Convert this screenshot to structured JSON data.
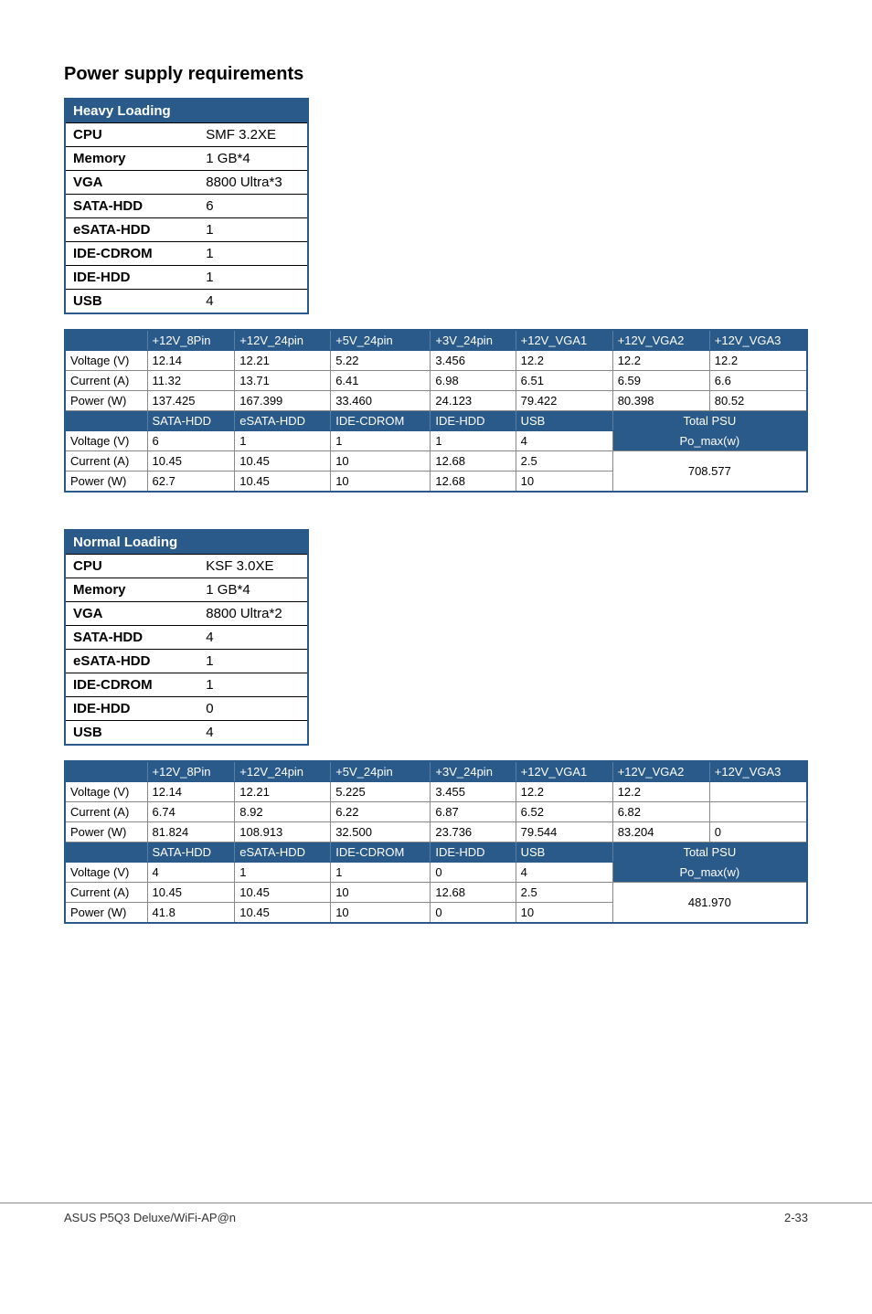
{
  "title": "Power supply requirements",
  "heavy": {
    "header": "Heavy Loading",
    "rows": [
      {
        "k": "CPU",
        "v": "SMF 3.2XE"
      },
      {
        "k": "Memory",
        "v": "1 GB*4"
      },
      {
        "k": "VGA",
        "v": "8800 Ultra*3"
      },
      {
        "k": "SATA-HDD",
        "v": "6"
      },
      {
        "k": "eSATA-HDD",
        "v": "1"
      },
      {
        "k": "IDE-CDROM",
        "v": "1"
      },
      {
        "k": "IDE-HDD",
        "v": "1"
      },
      {
        "k": "USB",
        "v": "4"
      }
    ],
    "grid": {
      "h1": [
        "",
        "+12V_8Pin",
        "+12V_24pin",
        "+5V_24pin",
        "+3V_24pin",
        "+12V_VGA1",
        "+12V_VGA2",
        "+12V_VGA3"
      ],
      "r1": [
        {
          "l": "Voltage (V)",
          "c": [
            "12.14",
            "12.21",
            "5.22",
            "3.456",
            "12.2",
            "12.2",
            "12.2"
          ]
        },
        {
          "l": "Current (A)",
          "c": [
            "11.32",
            "13.71",
            "6.41",
            "6.98",
            "6.51",
            "6.59",
            "6.6"
          ]
        },
        {
          "l": "Power (W)",
          "c": [
            "137.425",
            "167.399",
            "33.460",
            "24.123",
            "79.422",
            "80.398",
            "80.52"
          ]
        }
      ],
      "h2": [
        "",
        "SATA-HDD",
        "eSATA-HDD",
        "IDE-CDROM",
        "IDE-HDD",
        "USB",
        "Total PSU"
      ],
      "r2": [
        {
          "l": "Voltage (V)",
          "c": [
            "6",
            "1",
            "1",
            "1",
            "4"
          ],
          "tail": "Po_max(w)"
        },
        {
          "l": "Current (A)",
          "c": [
            "10.45",
            "10.45",
            "10",
            "12.68",
            "2.5"
          ],
          "tail": "708.577"
        },
        {
          "l": "Power (W)",
          "c": [
            "62.7",
            "10.45",
            "10",
            "12.68",
            "10"
          ]
        }
      ],
      "total_value": "708.577",
      "po_label": "Po_max(w)"
    }
  },
  "normal": {
    "header": "Normal Loading",
    "rows": [
      {
        "k": "CPU",
        "v": "KSF 3.0XE"
      },
      {
        "k": "Memory",
        "v": "1 GB*4"
      },
      {
        "k": "VGA",
        "v": "8800 Ultra*2"
      },
      {
        "k": "SATA-HDD",
        "v": "4"
      },
      {
        "k": "eSATA-HDD",
        "v": "1"
      },
      {
        "k": "IDE-CDROM",
        "v": "1"
      },
      {
        "k": "IDE-HDD",
        "v": "0"
      },
      {
        "k": "USB",
        "v": "4"
      }
    ],
    "grid": {
      "h1": [
        "",
        "+12V_8Pin",
        "+12V_24pin",
        "+5V_24pin",
        "+3V_24pin",
        "+12V_VGA1",
        "+12V_VGA2",
        "+12V_VGA3"
      ],
      "r1": [
        {
          "l": "Voltage (V)",
          "c": [
            "12.14",
            "12.21",
            "5.225",
            "3.455",
            "12.2",
            "12.2",
            ""
          ]
        },
        {
          "l": "Current (A)",
          "c": [
            "6.74",
            "8.92",
            "6.22",
            "6.87",
            "6.52",
            "6.82",
            ""
          ]
        },
        {
          "l": "Power (W)",
          "c": [
            "81.824",
            "108.913",
            "32.500",
            "23.736",
            "79.544",
            "83.204",
            "0"
          ]
        }
      ],
      "h2": [
        "",
        "SATA-HDD",
        "eSATA-HDD",
        "IDE-CDROM",
        "IDE-HDD",
        "USB",
        "Total PSU"
      ],
      "r2": [
        {
          "l": "Voltage (V)",
          "c": [
            "4",
            "1",
            "1",
            "0",
            "4"
          ],
          "tail": "Po_max(w)"
        },
        {
          "l": "Current (A)",
          "c": [
            "10.45",
            "10.45",
            "10",
            "12.68",
            "2.5"
          ],
          "tail": "481.970"
        },
        {
          "l": "Power (W)",
          "c": [
            "41.8",
            "10.45",
            "10",
            "0",
            "10"
          ]
        }
      ],
      "total_value": "481.970",
      "po_label": "Po_max(w)"
    }
  },
  "footer": {
    "left": "ASUS P5Q3 Deluxe/WiFi-AP@n",
    "right": "2-33"
  }
}
